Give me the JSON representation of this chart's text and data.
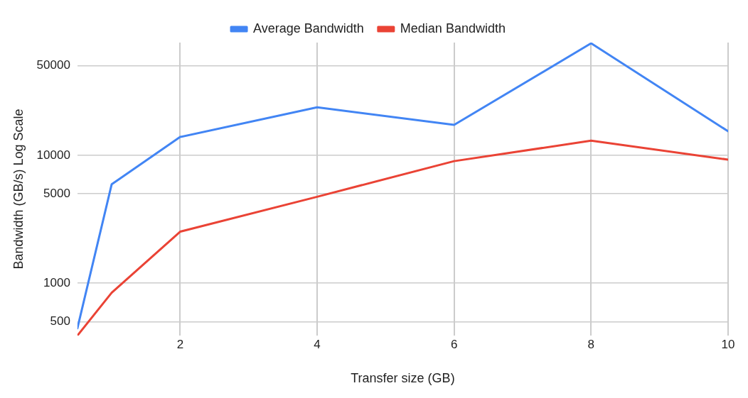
{
  "chart_data": {
    "type": "line",
    "xlabel": "Transfer size (GB)",
    "ylabel": "Bandwidth (GB/s) Log Scale",
    "x": [
      0.5,
      1,
      2,
      4,
      6,
      8,
      10
    ],
    "series": [
      {
        "name": "Average Bandwidth",
        "color": "#4285f4",
        "values": [
          445,
          5930,
          13900,
          23700,
          17300,
          75000,
          15400
        ]
      },
      {
        "name": "Median Bandwidth",
        "color": "#ea4335",
        "values": [
          390,
          843,
          2530,
          4740,
          9000,
          13000,
          9250
        ]
      }
    ],
    "xlim": [
      0.5,
      10
    ],
    "xticks": [
      2,
      4,
      6,
      8,
      10
    ],
    "ylim": [
      390,
      76000
    ],
    "yticks": [
      500,
      1000,
      5000,
      10000,
      50000
    ],
    "log": "y",
    "grid": true,
    "legend": "top",
    "marker": "none",
    "line_style": "solid"
  }
}
